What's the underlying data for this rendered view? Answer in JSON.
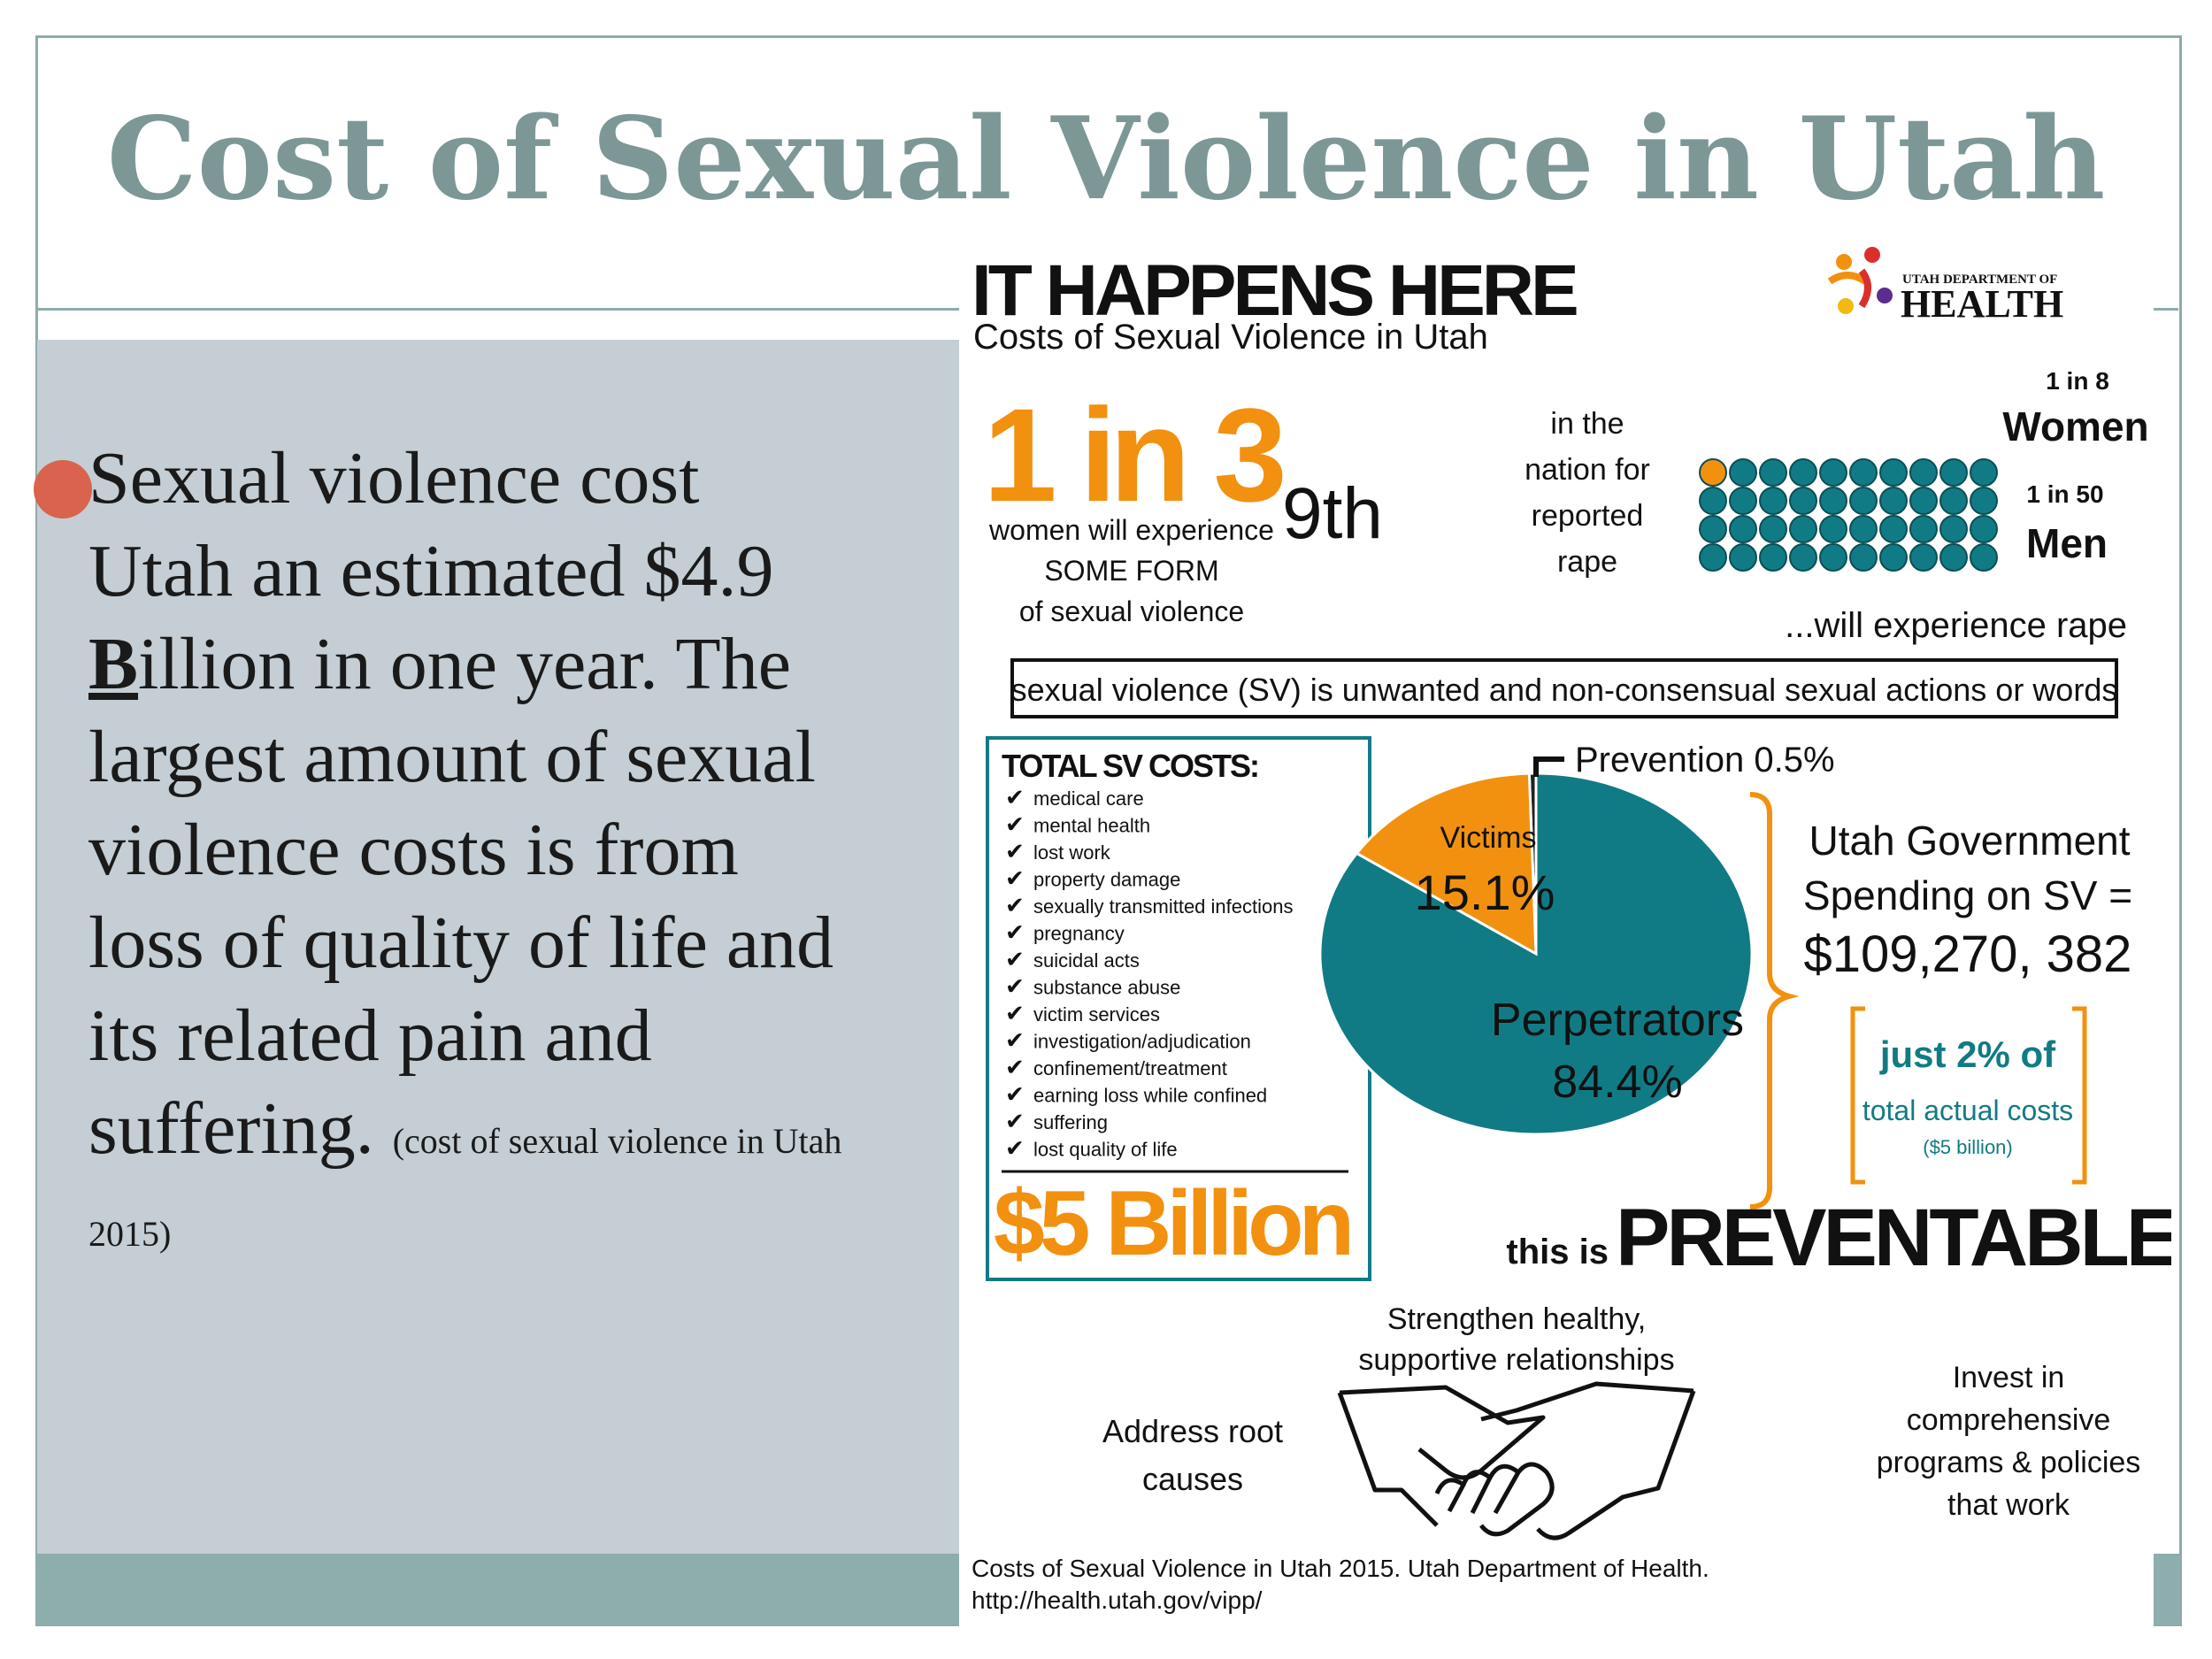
{
  "slide": {
    "title": "Cost of Sexual Violence in Utah",
    "bullet": {
      "text_before": "Sexual violence cost Utah an estimated $4.9 ",
      "bold_letter": "B",
      "text_after": "illion in one year. The largest amount of sexual violence costs is from loss of quality of life and its related pain and suffering.",
      "citation": "(cost of sexual violence in Utah 2015)"
    }
  },
  "infographic": {
    "headline": "IT HAPPENS HERE",
    "subheadline": "Costs of Sexual Violence in Utah",
    "logo": {
      "line1": "UTAH DEPARTMENT OF",
      "line2": "HEALTH"
    },
    "stat1": {
      "big": "1 in 3",
      "line1": "women will experience",
      "line2": "SOME FORM",
      "line3": "of sexual violence"
    },
    "stat2": {
      "rank": "9th",
      "line1": "in the",
      "line2": "nation for",
      "line3": "reported",
      "line4": "rape"
    },
    "stat3": {
      "women_ratio": "1 in 8",
      "women_label": "Women",
      "men_ratio": "1 in 50",
      "men_label": "Men",
      "footer": "...will experience rape"
    },
    "definition": "sexual violence (SV) is unwanted and non-consensual sexual actions or words",
    "costs_box": {
      "title": "TOTAL SV COSTS:",
      "items": [
        "medical care",
        "mental health",
        "lost work",
        "property damage",
        "sexually transmitted infections",
        "pregnancy",
        "suicidal acts",
        "substance abuse",
        "victim services",
        "investigation/adjudication",
        "confinement/treatment",
        "earning loss while confined",
        "suffering",
        "lost quality of life"
      ],
      "total": "$5 Billion"
    },
    "chart_data": {
      "type": "pie",
      "categories": [
        "Perpetrators",
        "Victims",
        "Prevention"
      ],
      "values": [
        84.4,
        15.1,
        0.5
      ],
      "labels": [
        "Perpetrators 84.4%",
        "Victims 15.1%",
        "Prevention 0.5%"
      ],
      "colors": [
        "#117b85",
        "#f2910f",
        "#222222"
      ]
    },
    "pie_labels": {
      "prevention": "Prevention 0.5%",
      "victims_name": "Victims",
      "victims_pct": "15.1%",
      "perp_name": "Perpetrators",
      "perp_pct": "84.4%"
    },
    "gov_spending": {
      "line1": "Utah Government",
      "line2": "Spending on SV =",
      "amount": "$109,270, 382"
    },
    "share": {
      "line1": "just 2% of",
      "line2": "total actual costs",
      "line3": "($5 billion)"
    },
    "preventable": {
      "small": "this is",
      "big": "PREVENTABLE."
    },
    "strategies": {
      "top_line1": "Strengthen healthy,",
      "top_line2": "supportive relationships",
      "left_line1": "Address root",
      "left_line2": "causes",
      "right_line1": "Invest in",
      "right_line2": "comprehensive",
      "right_line3": "programs & policies",
      "right_line4": "that work"
    },
    "source": {
      "line1": "Costs of Sexual Violence in Utah 2015. Utah Department of Health.",
      "line2": "http://health.utah.gov/vipp/"
    },
    "colors": {
      "orange": "#f2910f",
      "teal": "#117b85",
      "slide_title": "#7d9797",
      "panel": "#c4ced4",
      "bullet": "#d9634e"
    }
  }
}
